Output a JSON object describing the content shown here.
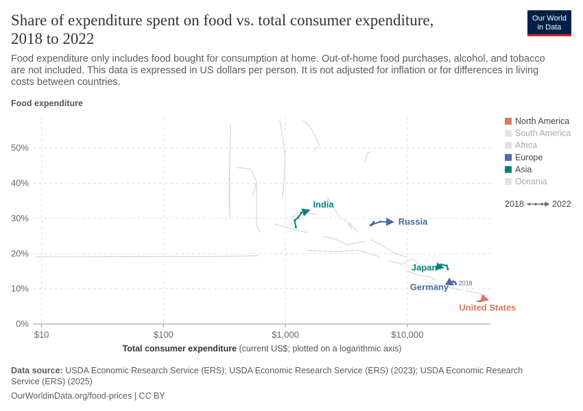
{
  "chart_data": {
    "type": "connected-scatter",
    "title": [
      "Share of expenditure spent on food vs. total consumer expenditure,",
      "2018 to 2022"
    ],
    "subtitle": [
      "Food expenditure only includes food bought for consumption at home. Out-of-home food purchases, alcohol, and tobacco",
      "are not included. This data is expressed in US dollars per person. It is not adjusted for inflation or for differences in living",
      "costs between countries."
    ],
    "y_label": "Food expenditure",
    "x_label": "Total consumer expenditure",
    "x_label_note": "(current US$; plotted on a logarithmic axis)",
    "x_log": true,
    "xlim": [
      8.5,
      48000
    ],
    "ylim": [
      0,
      59
    ],
    "xticks": [
      {
        "value": 10,
        "label": "$10"
      },
      {
        "value": 100,
        "label": "$100"
      },
      {
        "value": 1000,
        "label": "$1,000"
      },
      {
        "value": 10000,
        "label": "$10,000"
      }
    ],
    "yticks": [
      {
        "value": 0,
        "label": "0%"
      },
      {
        "value": 10,
        "label": "10%"
      },
      {
        "value": 20,
        "label": "20%"
      },
      {
        "value": 30,
        "label": "30%"
      },
      {
        "value": 40,
        "label": "40%"
      },
      {
        "value": 50,
        "label": "50%"
      }
    ],
    "grid": true,
    "legend": [
      {
        "name": "North America",
        "color": "#e07660"
      },
      {
        "name": "South America",
        "color": "#e2e2e2"
      },
      {
        "name": "Africa",
        "color": "#e2e2e2"
      },
      {
        "name": "Europe",
        "color": "#4c6a9c"
      },
      {
        "name": "Asia",
        "color": "#00847e"
      },
      {
        "name": "Oceania",
        "color": "#e2e2e2"
      }
    ],
    "time_legend": {
      "start": "2018",
      "end": "2022"
    },
    "series": [
      {
        "name": "India",
        "color": "#00847e",
        "x": [
          1220,
          1190,
          1270,
          1350,
          1560
        ],
        "values": [
          27.5,
          29.5,
          30.2,
          31.6,
          32.3
        ]
      },
      {
        "name": "Russia",
        "color": "#4c6a9c",
        "x": [
          5100,
          5300,
          5000,
          6000,
          7600
        ],
        "values": [
          28.2,
          29.0,
          28.1,
          29.1,
          29.0
        ]
      },
      {
        "name": "Japan",
        "color": "#00847e",
        "x": [
          21500,
          21000,
          19000,
          17800,
          19500
        ],
        "values": [
          15.6,
          16.6,
          16.9,
          16.3,
          16.0
        ]
      },
      {
        "name": "Germany",
        "color": "#4c6a9c",
        "x": [
          25000,
          24500,
          23800,
          22600,
          23600
        ],
        "values": [
          11.4,
          11.9,
          12.1,
          11.6,
          11.2
        ]
      },
      {
        "name": "United States",
        "color": "#e07660",
        "x": [
          38000,
          39500,
          40500,
          43000,
          45500
        ],
        "values": [
          6.5,
          6.5,
          6.7,
          7.1,
          6.9
        ]
      }
    ],
    "annotation": {
      "text": "2018",
      "series": 3
    },
    "background_color": "#d6d6d6",
    "background_series": [
      {
        "x": [
          9,
          300,
          600
        ],
        "values": [
          19.1,
          19.2,
          19.4
        ]
      },
      {
        "x": [
          350,
          350,
          345,
          355
        ],
        "values": [
          52,
          30,
          37,
          57
        ]
      },
      {
        "x": [
          400,
          520,
          580,
          540
        ],
        "values": [
          44.5,
          44.0,
          40.5,
          36.5
        ]
      },
      {
        "x": [
          580,
          580,
          620
        ],
        "values": [
          40,
          28,
          26
        ]
      },
      {
        "x": [
          900,
          960,
          1000,
          950
        ],
        "values": [
          58,
          52,
          47,
          36
        ]
      },
      {
        "x": [
          1400,
          1600,
          1900,
          1700
        ],
        "values": [
          58,
          56,
          51,
          49
        ]
      },
      {
        "x": [
          1100,
          1400,
          1600,
          1800
        ],
        "values": [
          30.5,
          31,
          31.5,
          31
        ]
      },
      {
        "x": [
          2200,
          2500,
          2400,
          2800
        ],
        "values": [
          36,
          33,
          34,
          30
        ]
      },
      {
        "x": [
          3000,
          3500,
          3300,
          4000
        ],
        "values": [
          30,
          27,
          29,
          26
        ]
      },
      {
        "x": [
          2000,
          2600,
          3200,
          4500
        ],
        "values": [
          25,
          24,
          22.5,
          23.5
        ]
      },
      {
        "x": [
          1500,
          2500,
          4000,
          6000
        ],
        "values": [
          21,
          20.5,
          21,
          19
        ]
      },
      {
        "x": [
          5000,
          6500,
          8000,
          10000
        ],
        "values": [
          24,
          22,
          20,
          19
        ]
      },
      {
        "x": [
          7000,
          9000,
          11000,
          13000
        ],
        "values": [
          18,
          17,
          18.5,
          16.5
        ]
      },
      {
        "x": [
          10000,
          12000,
          15000,
          17000
        ],
        "values": [
          15,
          14,
          13.5,
          12.5
        ]
      },
      {
        "x": [
          14000,
          18000,
          22000,
          28000
        ],
        "values": [
          12,
          11,
          10.5,
          9.5
        ]
      },
      {
        "x": [
          30000,
          35000,
          40000,
          46000
        ],
        "values": [
          9.5,
          9,
          8.5,
          8
        ]
      },
      {
        "x": [
          4500,
          4700,
          5000
        ],
        "values": [
          46,
          48.5,
          49
        ]
      },
      {
        "x": [
          800,
          1000,
          1200,
          1500
        ],
        "values": [
          28.5,
          27.5,
          26.8,
          26
        ]
      }
    ]
  },
  "source": {
    "label": "Data source:",
    "text": [
      "USDA Economic Research Service (ERS); USDA Economic Research Service (ERS) (2023); USDA Economic Research",
      "Service (ERS) (2025)"
    ]
  },
  "footer": "OurWorldinData.org/food-prices | CC BY",
  "logo": [
    "Our World",
    "in Data"
  ]
}
